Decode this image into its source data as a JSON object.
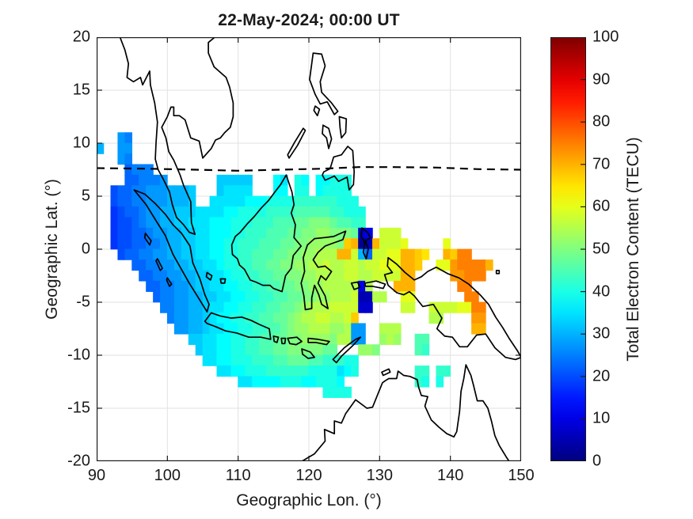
{
  "title": "22-May-2024; 00:00 UT",
  "axes": {
    "xlabel": "Geographic Lon. (°)",
    "ylabel": "Geographic Lat. (°)",
    "xticks": [
      90,
      100,
      110,
      120,
      130,
      140,
      150
    ],
    "yticks": [
      20,
      15,
      10,
      5,
      0,
      -5,
      -10,
      -15,
      -20
    ],
    "xlim": [
      90,
      150
    ],
    "ylim": [
      -20,
      20
    ],
    "grid": true
  },
  "colorbar": {
    "label": "Total Electron Content (TECU)",
    "ticks": [
      0,
      10,
      20,
      30,
      40,
      50,
      60,
      70,
      80,
      90,
      100
    ],
    "lim": [
      0,
      100
    ],
    "colormap": "jet"
  },
  "chart_data": {
    "type": "heatmap",
    "title": "22-May-2024; 00:00 UT",
    "xlabel": "Geographic Lon. (°)",
    "ylabel": "Geographic Lat. (°)",
    "value_label": "Total Electron Content (TECU)",
    "value_range": [
      0,
      100
    ],
    "grid": {
      "lon_start": 90,
      "lon_step": 1,
      "lat_start": 11,
      "lat_step": -1,
      "encoding": "each char is one 1-deg cell; '.' = no data; TECU = index_in_scale * 2.5",
      "scale": "0123456789ABCDEFGHIJKLMNOPQRSTUVWXYZ",
      "rows": [
        "...BA......................................................",
        "C..BB......................................................",
        "...BA......................................................",
        "....9AAA...................................................",
        "....99AAAB.......DDDDD...FE.GF.FFGGG.......................",
        "..899AABBBCCCD...DEEEE...FF.GG.FGGGG.......................",
        "..899AABBBCCCD..EEEEEFFFGGGGHHHHHHGGG......................",
        "..7899ABBCCDDDEEEEFFGGGGHHHHIIIIIHHGGG.....................",
        "..7889ABBCCDDEEEFFFGGGHHHIIIJJKKKJIIHH.....................",
        "..78899ABBCCDDEEFFFGGHHHIIIJJKKLLKKKJ34.NNN................",
        "..78899AABCCDDEEFFGGHHHIIIJJKKLLLLKRS12SNNNO.....O.........",
        "...899AABBCCDDEEFFGGHHIIIJJKKLLMMMSSNC9NNOOSSRQ..SRUU......",
        ".....99AABBCCDDEEFGGHHIIJJKKLLMMNMMNNMNNOOOSSR..OOTUUUUS...",
        "......99AABBCCDDEEFGGHHIIJJKKLLMMMMNNMMNNNNSS.....TTUUU....",
        ".......99AABBCDDEEFFGGHHIIJJKKLLMMMMM4M...SSS......UU......",
        "........9AABBCCDDEEFFGGHHIIJJKKLLMMMN22MM..OO.......UU.....",
        ".........AABBCCDEEFFGGHHIIJJKLMMMNNNN33....NN..NNNNOOUU....",
        "..........ABBCCDEFFGGHHIIJJKLMMNNMMNR..........MM....TT....",
        "...........BBCCDEEFFGGHHIIJKLLMMMLLMBB..MMM..........SS....",
        ".............DDEEFFGGHHIIJJKKLLLLKMMBB..LML..II............",
        "..............DEEFFGGHHIIJJKKKKKJJ...LLK.....IH............",
        "...............EEFFGGGHHHIIJJJIIHHHGG......................",
        ".................EEFFGGGHHHHHHGGGGEFG........HH.HH........",
        "....................EEFFFFGGGFFGGGF..........HG.G.........",
        "................................GGGG......................"
      ]
    },
    "dashed_line": {
      "description": "dashed latitude contour near 7.6 deg N spanning full longitude range",
      "points": [
        [
          90,
          7.65
        ],
        [
          97,
          7.6
        ],
        [
          104,
          7.5
        ],
        [
          110,
          7.4
        ],
        [
          116,
          7.5
        ],
        [
          122,
          7.6
        ],
        [
          127,
          7.75
        ],
        [
          132,
          7.75
        ],
        [
          138,
          7.7
        ],
        [
          144,
          7.55
        ],
        [
          150,
          7.5
        ]
      ]
    },
    "notable_features": [
      {
        "region": "west (Sumatra / Malay Peninsula, lon 92-106)",
        "tec_range": [
          17.5,
          32.5
        ]
      },
      {
        "region": "center (Borneo / Java, lon 107-120)",
        "tec_range": [
          35,
          52.5
        ]
      },
      {
        "region": "east-center (Sulawesi / Maluku, lon 120-133)",
        "tec_range": [
          50,
          62.5
        ]
      },
      {
        "region": "far east (New Guinea, lon 134-145)",
        "tec_range": [
          60,
          75
        ]
      },
      {
        "region": "depletion anomalies near lon 127-129 at lat 2..0 and lat -4..-6",
        "tec_range": [
          2.5,
          10
        ]
      }
    ]
  }
}
